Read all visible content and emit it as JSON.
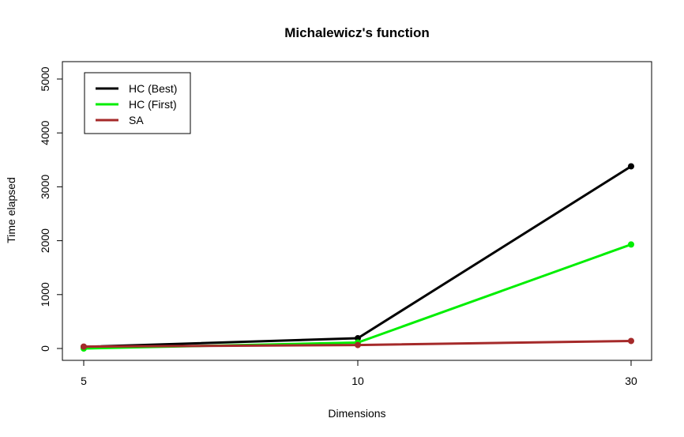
{
  "chart_data": {
    "type": "line",
    "title": "Michalewicz's function",
    "xlabel": "Dimensions",
    "ylabel": "Time elapsed",
    "categories": [
      "5",
      "10",
      "30"
    ],
    "ylim": [
      0,
      5000
    ],
    "yticks": [
      "0",
      "1000",
      "2000",
      "3000",
      "4000",
      "5000"
    ],
    "grid": false,
    "legend_position": "top-left",
    "series": [
      {
        "name": "HC (Best)",
        "color": "#000000",
        "values": [
          30,
          190,
          3380
        ]
      },
      {
        "name": "HC (First)",
        "color": "#00ee00",
        "values": [
          0,
          110,
          1930
        ]
      },
      {
        "name": "SA",
        "color": "#a52a2a",
        "values": [
          35,
          65,
          140
        ]
      }
    ]
  }
}
